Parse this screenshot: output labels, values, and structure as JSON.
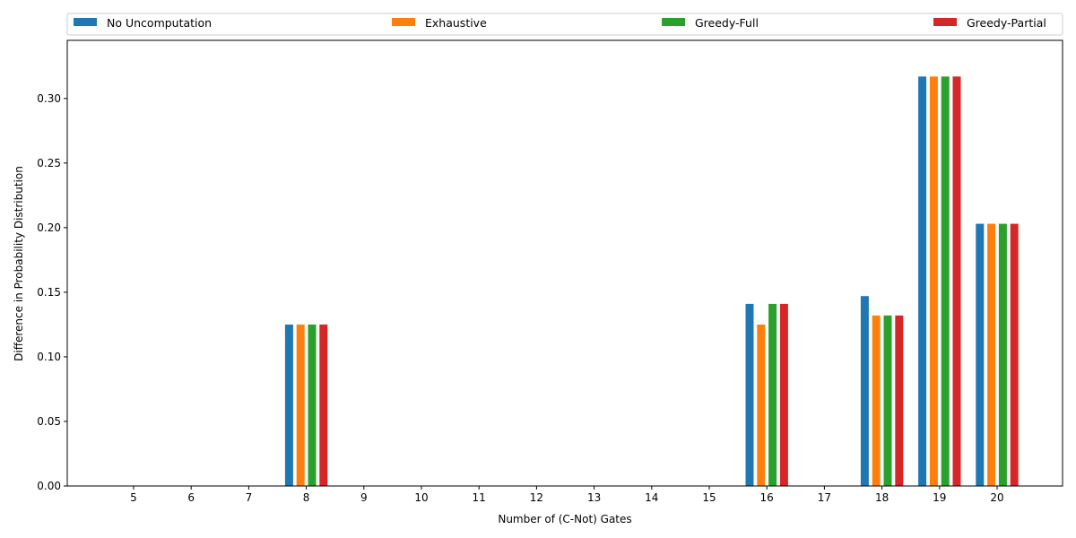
{
  "chart_data": {
    "type": "bar",
    "title": "",
    "xlabel": "Number of (C-Not) Gates",
    "ylabel": "Difference in Probability Distribution",
    "categories": [
      "5",
      "6",
      "7",
      "8",
      "9",
      "10",
      "11",
      "12",
      "13",
      "14",
      "15",
      "16",
      "17",
      "18",
      "19",
      "20"
    ],
    "ylim": [
      0,
      0.345
    ],
    "yticks": [
      "0.00",
      "0.05",
      "0.10",
      "0.15",
      "0.20",
      "0.25",
      "0.30"
    ],
    "grid": false,
    "legend_position": "top",
    "series": [
      {
        "name": "No Uncomputation",
        "color": "#1f77b4",
        "values": [
          0,
          0,
          0,
          0.125,
          0,
          0,
          0,
          0,
          0,
          0,
          0,
          0.141,
          0,
          0.147,
          0.317,
          0.203
        ]
      },
      {
        "name": "Exhaustive",
        "color": "#ff7f0e",
        "values": [
          0,
          0,
          0,
          0.125,
          0,
          0,
          0,
          0,
          0,
          0,
          0,
          0.125,
          0,
          0.132,
          0.317,
          0.203
        ]
      },
      {
        "name": "Greedy-Full",
        "color": "#2ca02c",
        "values": [
          0,
          0,
          0,
          0.125,
          0,
          0,
          0,
          0,
          0,
          0,
          0,
          0.141,
          0,
          0.132,
          0.317,
          0.203
        ]
      },
      {
        "name": "Greedy-Partial",
        "color": "#d62728",
        "values": [
          0,
          0,
          0,
          0.125,
          0,
          0,
          0,
          0,
          0,
          0,
          0,
          0.141,
          0,
          0.132,
          0.317,
          0.203
        ]
      }
    ]
  }
}
